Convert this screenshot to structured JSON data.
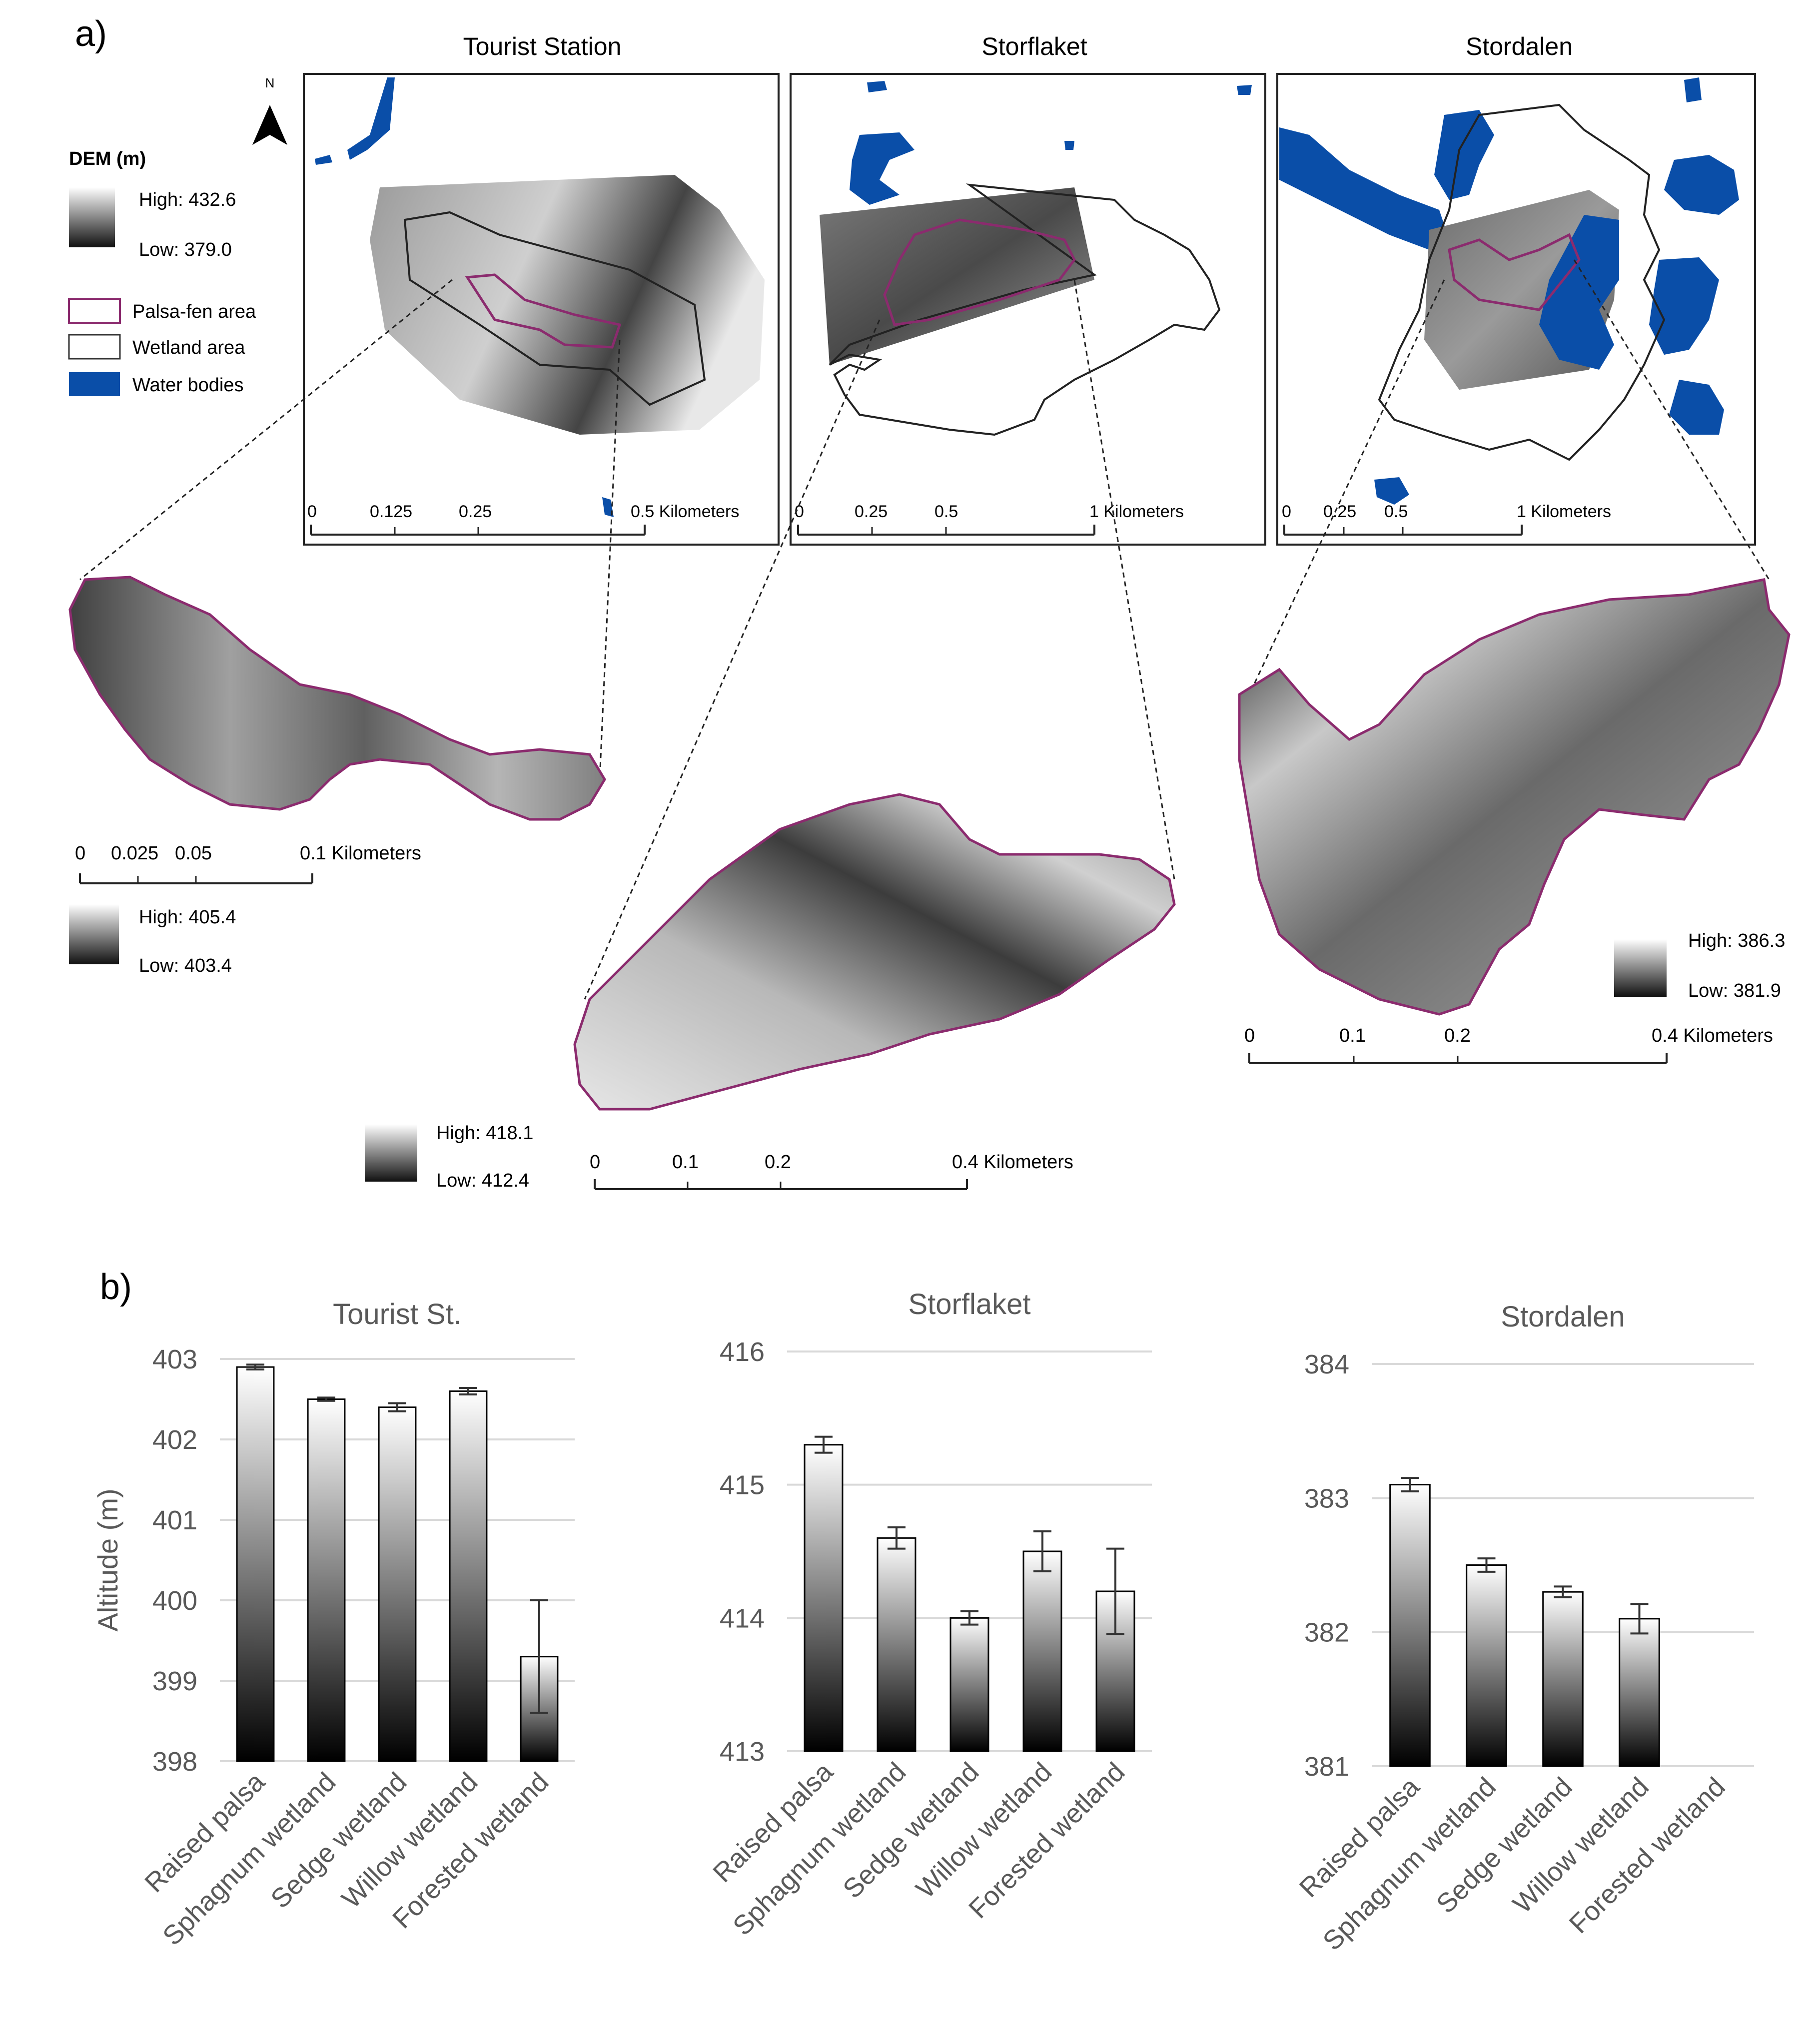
{
  "panel_a": {
    "label": "a)",
    "maps": [
      {
        "title": "Tourist Station",
        "scale_labels": [
          "0",
          "0.125",
          "0.25",
          "0.5 Kilometers"
        ]
      },
      {
        "title": "Storflaket",
        "scale_labels": [
          "0",
          "0.25",
          "0.5",
          "1 Kilometers"
        ]
      },
      {
        "title": "Stordalen",
        "scale_labels": [
          "0",
          "0.25",
          "0.5",
          "1 Kilometers"
        ]
      }
    ],
    "north_label": "N",
    "legend": {
      "title": "DEM (m)",
      "high": "High: 432.6",
      "low": "Low: 379.0",
      "palsa": "Palsa-fen area",
      "wetland": "Wetland area",
      "water": "Water bodies"
    },
    "insets": [
      {
        "name": "tourist",
        "high": "High: 405.4",
        "low": "Low: 403.4",
        "scale_labels": [
          "0",
          "0.025",
          "0.05",
          "0.1 Kilometers"
        ]
      },
      {
        "name": "storflaket",
        "high": "High: 418.1",
        "low": "Low: 412.4",
        "scale_labels": [
          "0",
          "0.1",
          "0.2",
          "0.4 Kilometers"
        ]
      },
      {
        "name": "stordalen",
        "high": "High: 386.3",
        "low": "Low: 381.9",
        "scale_labels": [
          "0",
          "0.1",
          "0.2",
          "0.4 Kilometers"
        ]
      }
    ],
    "colors": {
      "palsa_outline": "#8b2b6e",
      "water": "#0a4ea8"
    }
  },
  "panel_b": {
    "label": "b)"
  },
  "chart_data": [
    {
      "type": "bar",
      "title": "Tourist St.",
      "ylabel": "Altitude (m)",
      "categories": [
        "Raised palsa",
        "Sphagnum wetland",
        "Sedge wetland",
        "Willow wetland",
        "Forested wetland"
      ],
      "values": [
        402.9,
        402.5,
        402.4,
        402.6,
        399.3
      ],
      "errors": [
        0.03,
        0.02,
        0.05,
        0.04,
        0.7
      ],
      "ylim": [
        398,
        403
      ],
      "yticks": [
        "398",
        "399",
        "400",
        "401",
        "402",
        "403"
      ]
    },
    {
      "type": "bar",
      "title": "Storflaket",
      "ylabel": "",
      "categories": [
        "Raised palsa",
        "Sphagnum wetland",
        "Sedge wetland",
        "Willow wetland",
        "Forested wetland"
      ],
      "values": [
        415.3,
        414.6,
        414.0,
        414.5,
        414.2
      ],
      "errors": [
        0.06,
        0.08,
        0.05,
        0.15,
        0.32
      ],
      "ylim": [
        413,
        416
      ],
      "yticks": [
        "413",
        "414",
        "415",
        "416"
      ]
    },
    {
      "type": "bar",
      "title": "Stordalen",
      "ylabel": "",
      "categories": [
        "Raised palsa",
        "Sphagnum wetland",
        "Sedge wetland",
        "Willow wetland",
        "Forested wetland"
      ],
      "values": [
        383.1,
        382.5,
        382.3,
        382.1,
        null
      ],
      "errors": [
        0.05,
        0.05,
        0.04,
        0.11,
        null
      ],
      "ylim": [
        381,
        384
      ],
      "yticks": [
        "381",
        "382",
        "383",
        "384"
      ]
    }
  ]
}
